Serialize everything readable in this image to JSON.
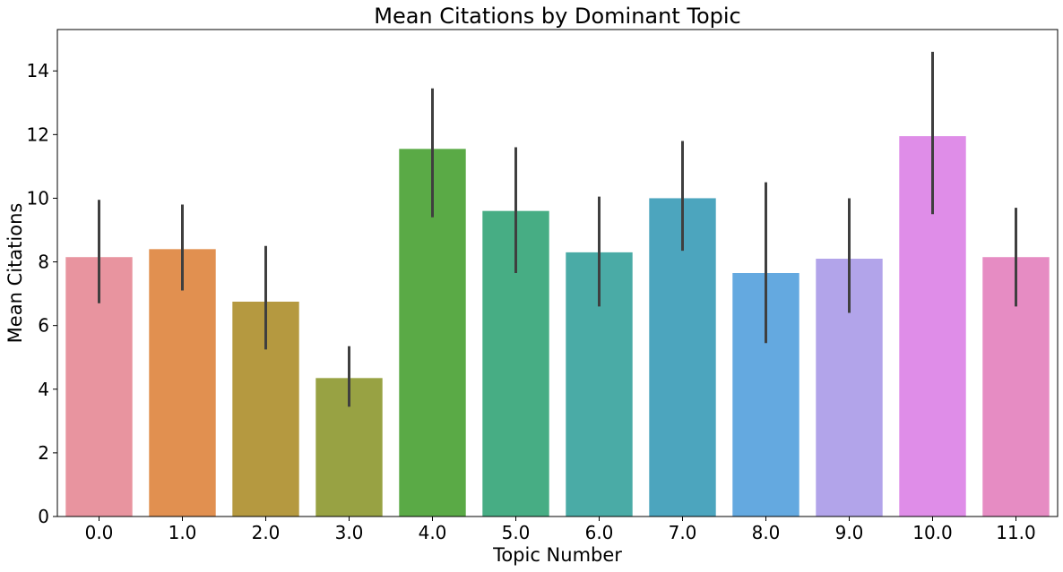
{
  "chart_data": {
    "type": "bar",
    "title": "Mean Citations by Dominant Topic",
    "xlabel": "Topic Number",
    "ylabel": "Mean Citations",
    "categories": [
      "0.0",
      "1.0",
      "2.0",
      "3.0",
      "4.0",
      "5.0",
      "6.0",
      "7.0",
      "8.0",
      "9.0",
      "10.0",
      "11.0"
    ],
    "values": [
      8.15,
      8.4,
      6.75,
      4.35,
      11.55,
      9.6,
      8.3,
      10.0,
      7.65,
      8.1,
      11.95,
      8.15
    ],
    "error_low": [
      6.7,
      7.1,
      5.25,
      3.45,
      9.4,
      7.65,
      6.6,
      8.35,
      5.45,
      6.4,
      9.5,
      6.6
    ],
    "error_high": [
      9.95,
      9.8,
      8.5,
      5.35,
      13.45,
      11.6,
      10.05,
      11.8,
      10.5,
      10.0,
      14.6,
      9.7
    ],
    "colors": [
      "#e8949f",
      "#e19050",
      "#b59940",
      "#98a243",
      "#5aaa46",
      "#47ad84",
      "#4aaba6",
      "#4ca5be",
      "#64a9e0",
      "#b2a4ea",
      "#df8de8",
      "#e68cc3"
    ],
    "yticks": [
      0,
      2,
      4,
      6,
      8,
      10,
      12,
      14
    ],
    "ylim": [
      0,
      15.3
    ],
    "grid": false,
    "legend": "none"
  }
}
